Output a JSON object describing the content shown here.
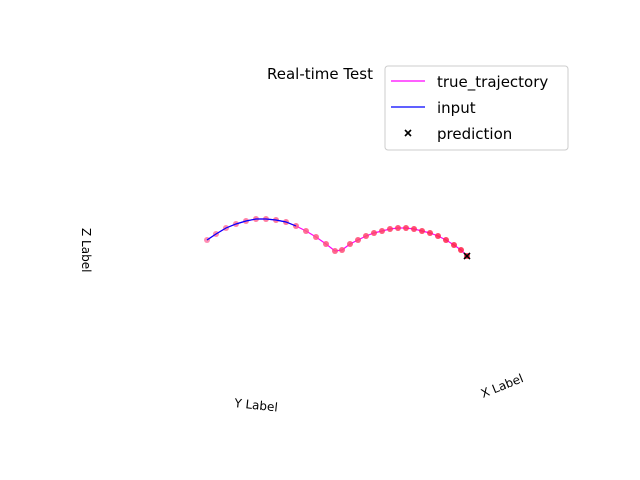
{
  "chart_data": {
    "type": "scatter",
    "projection": "3d",
    "title": "Real-time Test",
    "xlabel": "X Label",
    "ylabel": "Y Label",
    "zlabel": "Z Label",
    "grid": false,
    "axes_visible": false,
    "legend": {
      "placement": "top-right",
      "entries": [
        {
          "label": "true_trajectory",
          "marker": "line",
          "color": "#ff00ff"
        },
        {
          "label": "input",
          "marker": "line",
          "color": "#0000ff"
        },
        {
          "label": "prediction",
          "marker": "x",
          "color": "#000000"
        }
      ]
    },
    "series": [
      {
        "name": "true_trajectory",
        "kind": "line",
        "color": "#ff00ff",
        "points": [
          [
            207,
            240
          ],
          [
            216,
            234
          ],
          [
            226,
            228
          ],
          [
            236,
            224
          ],
          [
            246,
            221
          ],
          [
            256,
            219
          ],
          [
            266,
            219
          ],
          [
            276,
            220
          ],
          [
            286,
            222
          ],
          [
            296,
            226
          ],
          [
            306,
            231
          ],
          [
            316,
            237
          ],
          [
            326,
            244
          ],
          [
            335,
            251
          ],
          [
            342,
            250
          ],
          [
            350,
            244
          ],
          [
            358,
            240
          ],
          [
            366,
            236
          ],
          [
            374,
            233
          ],
          [
            382,
            231
          ],
          [
            390,
            229
          ],
          [
            398,
            228
          ],
          [
            406,
            228
          ],
          [
            414,
            229
          ],
          [
            422,
            231
          ],
          [
            430,
            233
          ],
          [
            438,
            236
          ],
          [
            446,
            240
          ],
          [
            454,
            245
          ],
          [
            461,
            250
          ],
          [
            467,
            256
          ]
        ]
      },
      {
        "name": "input",
        "kind": "line",
        "color": "#0000ff",
        "points": [
          [
            207,
            240
          ],
          [
            216,
            234
          ],
          [
            226,
            228
          ],
          [
            236,
            224
          ],
          [
            246,
            221
          ],
          [
            256,
            219
          ],
          [
            266,
            219
          ],
          [
            276,
            220
          ],
          [
            286,
            222
          ],
          [
            296,
            226
          ]
        ]
      },
      {
        "name": "prediction",
        "kind": "points",
        "marker_color": "#ff2f5a",
        "marker_shading": {
          "early": "#ff7aa6",
          "late": "#ff1a40"
        },
        "points": [
          [
            207,
            240
          ],
          [
            216,
            234
          ],
          [
            226,
            228
          ],
          [
            236,
            224
          ],
          [
            246,
            221
          ],
          [
            256,
            219
          ],
          [
            266,
            219
          ],
          [
            276,
            220
          ],
          [
            286,
            222
          ],
          [
            296,
            226
          ],
          [
            306,
            231
          ],
          [
            316,
            237
          ],
          [
            326,
            244
          ],
          [
            335,
            251
          ],
          [
            342,
            250
          ],
          [
            350,
            244
          ],
          [
            358,
            240
          ],
          [
            366,
            236
          ],
          [
            374,
            233
          ],
          [
            382,
            231
          ],
          [
            390,
            229
          ],
          [
            398,
            228
          ],
          [
            406,
            228
          ],
          [
            414,
            229
          ],
          [
            422,
            231
          ],
          [
            430,
            233
          ],
          [
            438,
            236
          ],
          [
            446,
            240
          ],
          [
            454,
            245
          ],
          [
            461,
            250
          ],
          [
            467,
            256
          ]
        ],
        "final_marker": {
          "symbol": "x",
          "color": "#000000"
        }
      }
    ]
  }
}
